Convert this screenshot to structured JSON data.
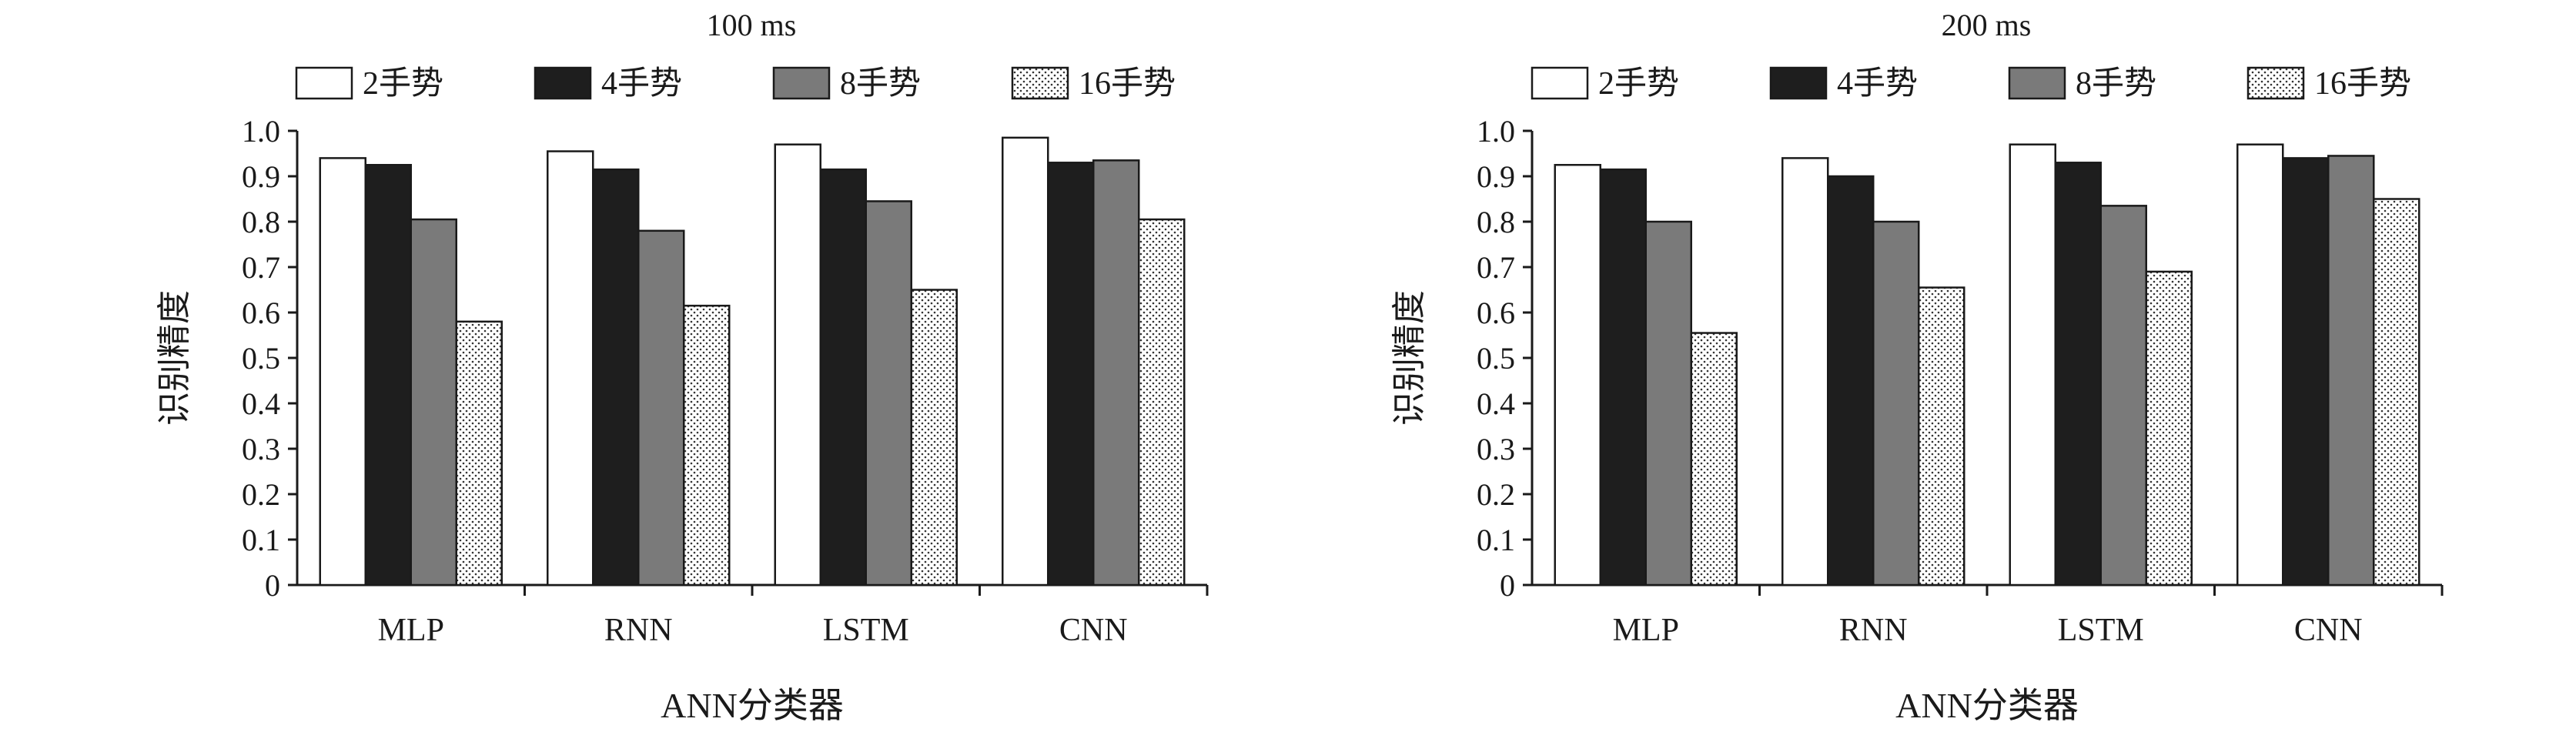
{
  "chart_data": [
    {
      "type": "bar",
      "title": "100 ms",
      "xlabel": "ANN分类器",
      "ylabel": "识别精度",
      "categories": [
        "MLP",
        "RNN",
        "LSTM",
        "CNN"
      ],
      "ylim": [
        0,
        1.0
      ],
      "yticks": [
        "0",
        "0.1",
        "0.2",
        "0.3",
        "0.4",
        "0.5",
        "0.6",
        "0.7",
        "0.8",
        "0.9",
        "1.0"
      ],
      "grid": false,
      "legend_position": "top",
      "series": [
        {
          "name": "2手势",
          "values": [
            0.94,
            0.955,
            0.97,
            0.985
          ]
        },
        {
          "name": "4手势",
          "values": [
            0.925,
            0.915,
            0.915,
            0.93
          ]
        },
        {
          "name": "8手势",
          "values": [
            0.805,
            0.78,
            0.845,
            0.935
          ]
        },
        {
          "name": "16手势",
          "values": [
            0.58,
            0.615,
            0.65,
            0.805
          ]
        }
      ]
    },
    {
      "type": "bar",
      "title": "200 ms",
      "xlabel": "ANN分类器",
      "ylabel": "识别精度",
      "categories": [
        "MLP",
        "RNN",
        "LSTM",
        "CNN"
      ],
      "ylim": [
        0,
        1.0
      ],
      "yticks": [
        "0",
        "0.1",
        "0.2",
        "0.3",
        "0.4",
        "0.5",
        "0.6",
        "0.7",
        "0.8",
        "0.9",
        "1.0"
      ],
      "grid": false,
      "legend_position": "top",
      "series": [
        {
          "name": "2手势",
          "values": [
            0.925,
            0.94,
            0.97,
            0.97
          ]
        },
        {
          "name": "4手势",
          "values": [
            0.915,
            0.9,
            0.93,
            0.94
          ]
        },
        {
          "name": "8手势",
          "values": [
            0.8,
            0.8,
            0.835,
            0.945
          ]
        },
        {
          "name": "16手势",
          "values": [
            0.555,
            0.655,
            0.69,
            0.85
          ]
        }
      ]
    }
  ],
  "series_styles": [
    {
      "fill": "#ffffff"
    },
    {
      "fill": "#1e1e1e"
    },
    {
      "fill": "#7a7a7a"
    },
    {
      "fill": "dots"
    }
  ],
  "colors": {
    "axis": "#1a1a1a",
    "text": "#1a1a1a"
  }
}
